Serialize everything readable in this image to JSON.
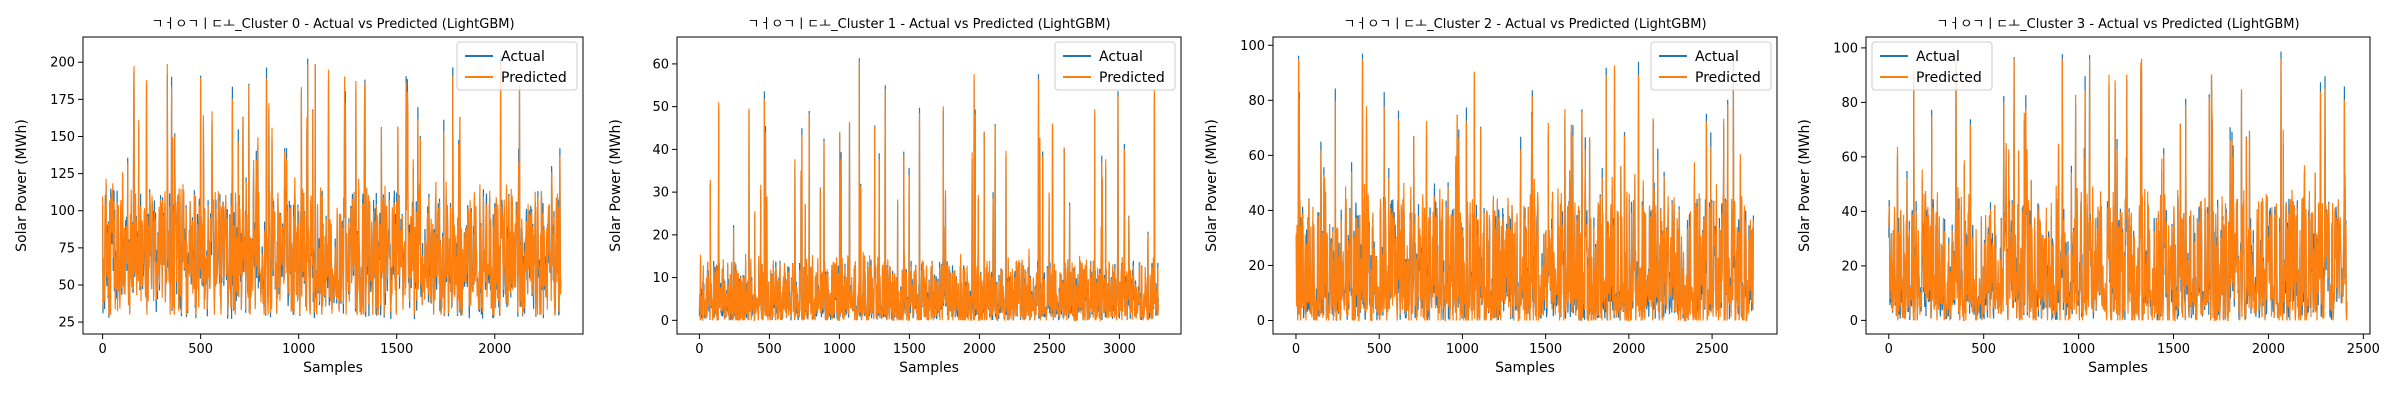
{
  "chart_data": [
    {
      "type": "line",
      "title": "ㄱㅓㅇㄱㅣㄷㅗ_Cluster 0 - Actual vs Predicted (LightGBM)",
      "xlabel": "Samples",
      "ylabel": "Solar Power (MWh)",
      "xlim": [
        -100,
        2450
      ],
      "ylim": [
        17,
        217
      ],
      "xticks": [
        0,
        500,
        1000,
        1500,
        2000
      ],
      "yticks": [
        25,
        50,
        75,
        100,
        125,
        150,
        175,
        200
      ],
      "legend": "top-right",
      "n_samples": 2340,
      "profile": {
        "base_lo": 45,
        "base_hi": 115,
        "spike_max": 205,
        "actual_min": 27,
        "predicted_min": 30
      },
      "series": [
        {
          "name": "Actual",
          "color": "#1f77b4"
        },
        {
          "name": "Predicted",
          "color": "#ff7f0e"
        }
      ]
    },
    {
      "type": "line",
      "title": "ㄱㅓㅇㄱㅣㄷㅗ_Cluster 1 - Actual vs Predicted (LightGBM)",
      "xlabel": "Samples",
      "ylabel": "Solar Power (MWh)",
      "xlim": [
        -160,
        3440
      ],
      "ylim": [
        -3.2,
        66.3
      ],
      "xticks": [
        0,
        500,
        1000,
        1500,
        2000,
        2500,
        3000
      ],
      "yticks": [
        0,
        10,
        20,
        30,
        40,
        50,
        60
      ],
      "legend": "top-right",
      "n_samples": 3280,
      "profile": {
        "base_lo": 0,
        "base_hi": 14,
        "spike_max": 63,
        "actual_min": 0,
        "predicted_min": 0
      },
      "series": [
        {
          "name": "Actual",
          "color": "#1f77b4"
        },
        {
          "name": "Predicted",
          "color": "#ff7f0e"
        }
      ]
    },
    {
      "type": "line",
      "title": "ㄱㅓㅇㄱㅣㄷㅗ_Cluster 2 - Actual vs Predicted (LightGBM)",
      "xlabel": "Samples",
      "ylabel": "Solar Power (MWh)",
      "xlim": [
        -138,
        2890
      ],
      "ylim": [
        -4.9,
        103
      ],
      "xticks": [
        0,
        500,
        1000,
        1500,
        2000,
        2500
      ],
      "yticks": [
        0,
        20,
        40,
        60,
        80,
        100
      ],
      "legend": "top-right",
      "n_samples": 2750,
      "profile": {
        "base_lo": 0,
        "base_hi": 45,
        "spike_max": 98,
        "actual_min": 0,
        "predicted_min": 0
      },
      "series": [
        {
          "name": "Actual",
          "color": "#1f77b4"
        },
        {
          "name": "Predicted",
          "color": "#ff7f0e"
        }
      ]
    },
    {
      "type": "line",
      "title": "ㄱㅓㅇㄱㅣㄷㅗ_Cluster 3 - Actual vs Predicted (LightGBM)",
      "xlabel": "Samples",
      "ylabel": "Solar Power (MWh)",
      "xlim": [
        -120,
        2535
      ],
      "ylim": [
        -5,
        104
      ],
      "xticks": [
        0,
        500,
        1000,
        1500,
        2000,
        2500
      ],
      "yticks": [
        0,
        20,
        40,
        60,
        80,
        100
      ],
      "legend": "top-left",
      "n_samples": 2415,
      "profile": {
        "base_lo": 0,
        "base_hi": 45,
        "spike_max": 99,
        "actual_min": 0,
        "predicted_min": 0
      },
      "series": [
        {
          "name": "Actual",
          "color": "#1f77b4"
        },
        {
          "name": "Predicted",
          "color": "#ff7f0e"
        }
      ]
    }
  ]
}
